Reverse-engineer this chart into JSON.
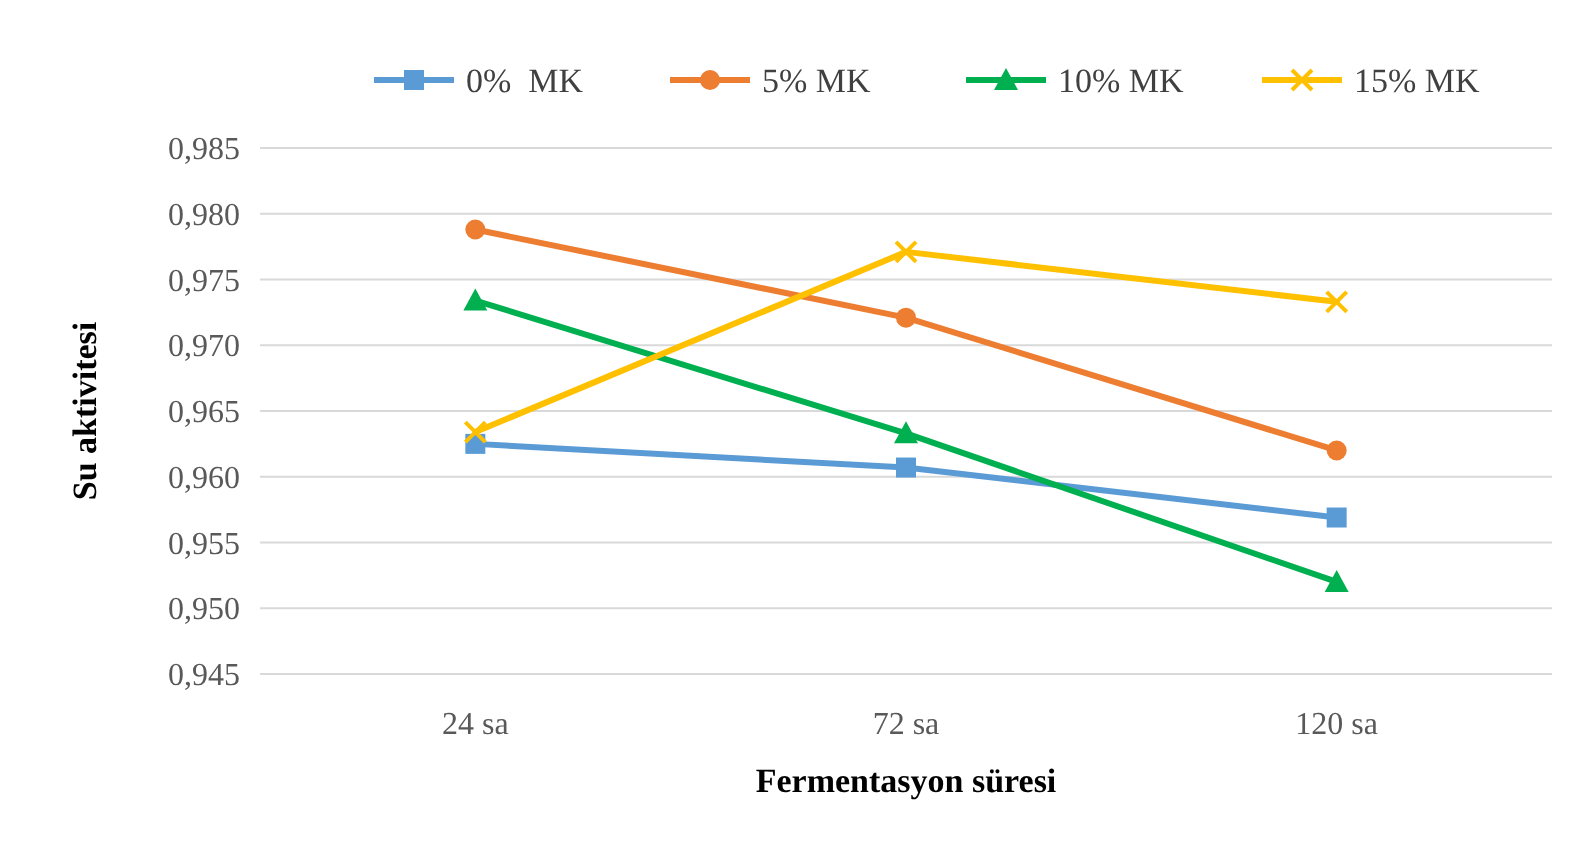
{
  "chart_data": {
    "type": "line",
    "xlabel": "Fermentasyon süresi",
    "ylabel": "Su aktivitesi",
    "categories": [
      "24 sa",
      "72 sa",
      "120 sa"
    ],
    "series": [
      {
        "name": "0%  MK",
        "color": "#5b9bd5",
        "marker": "square",
        "values": [
          0.9625,
          0.9607,
          0.9569
        ]
      },
      {
        "name": "5% MK",
        "color": "#ed7d31",
        "marker": "circle",
        "values": [
          0.9788,
          0.9721,
          0.962
        ]
      },
      {
        "name": "10% MK",
        "color": "#00b050",
        "marker": "triangle",
        "values": [
          0.9734,
          0.9633,
          0.952
        ]
      },
      {
        "name": "15% MK",
        "color": "#ffc000",
        "marker": "cross",
        "values": [
          0.9634,
          0.9771,
          0.9733
        ]
      }
    ],
    "ylim": [
      0.945,
      0.985
    ],
    "yticks": [
      {
        "value": 0.945,
        "label": "0,945"
      },
      {
        "value": 0.95,
        "label": "0,950"
      },
      {
        "value": 0.955,
        "label": "0,955"
      },
      {
        "value": 0.96,
        "label": "0,960"
      },
      {
        "value": 0.965,
        "label": "0,965"
      },
      {
        "value": 0.97,
        "label": "0,970"
      },
      {
        "value": 0.975,
        "label": "0,975"
      },
      {
        "value": 0.98,
        "label": "0,980"
      },
      {
        "value": 0.985,
        "label": "0,985"
      }
    ],
    "grid": "y",
    "legend": "top",
    "line_style": "solid"
  }
}
